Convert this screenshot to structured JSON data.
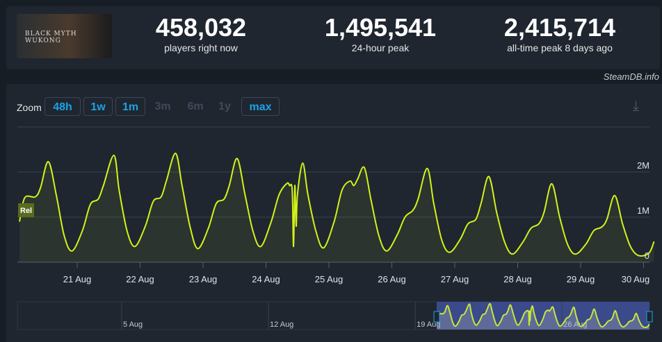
{
  "game": {
    "cover_text": "BLACK MYTH WUKONG"
  },
  "stats": [
    {
      "value": "458,032",
      "label": "players right now"
    },
    {
      "value": "1,495,541",
      "label": "24-hour peak"
    },
    {
      "value": "2,415,714",
      "label": "all-time peak 8 days ago"
    }
  ],
  "credit": "SteamDB.info",
  "zoom": {
    "label": "Zoom",
    "buttons": [
      {
        "label": "48h",
        "enabled": true
      },
      {
        "label": "1w",
        "enabled": true
      },
      {
        "label": "1m",
        "enabled": true
      },
      {
        "label": "3m",
        "enabled": false
      },
      {
        "label": "6m",
        "enabled": false
      },
      {
        "label": "1y",
        "enabled": false
      },
      {
        "label": "max",
        "enabled": true
      }
    ]
  },
  "colors": {
    "line": "#d4f21a",
    "accent": "#1aa3e8",
    "navigator_fill": "#3b4a8a"
  },
  "chart_data": {
    "type": "line",
    "ylim": [
      0,
      2600000
    ],
    "yticks": [
      {
        "v": 0,
        "label": "0"
      },
      {
        "v": 1000000,
        "label": "1M"
      },
      {
        "v": 2000000,
        "label": "2M"
      }
    ],
    "xticks": [
      "2024-08-21",
      "2024-08-22",
      "2024-08-23",
      "2024-08-24",
      "2024-08-25",
      "2024-08-26",
      "2024-08-27",
      "2024-08-28",
      "2024-08-29",
      "2024-08-30"
    ],
    "xtick_labels": [
      "21 Aug",
      "22 Aug",
      "23 Aug",
      "24 Aug",
      "25 Aug",
      "26 Aug",
      "27 Aug",
      "28 Aug",
      "29 Aug",
      "30 Aug"
    ],
    "marker_label": "Rel",
    "navigator_labels": [
      "5 Aug",
      "12 Aug",
      "19 Aug",
      "26 Aug"
    ],
    "grid": true,
    "points": [
      [
        "2024-08-20T02:00",
        900000
      ],
      [
        "2024-08-20T04:00",
        1430000
      ],
      [
        "2024-08-20T08:00",
        1450000
      ],
      [
        "2024-08-20T10:00",
        1650000
      ],
      [
        "2024-08-20T13:00",
        2230000
      ],
      [
        "2024-08-20T16:00",
        1500000
      ],
      [
        "2024-08-20T19:00",
        600000
      ],
      [
        "2024-08-20T22:00",
        250000
      ],
      [
        "2024-08-21T02:00",
        700000
      ],
      [
        "2024-08-21T05:00",
        1280000
      ],
      [
        "2024-08-21T08:00",
        1400000
      ],
      [
        "2024-08-21T10:00",
        1700000
      ],
      [
        "2024-08-21T14:00",
        2370000
      ],
      [
        "2024-08-21T16:00",
        1600000
      ],
      [
        "2024-08-21T19:00",
        700000
      ],
      [
        "2024-08-21T22:00",
        350000
      ],
      [
        "2024-08-22T02:00",
        800000
      ],
      [
        "2024-08-22T05:00",
        1350000
      ],
      [
        "2024-08-22T08:00",
        1450000
      ],
      [
        "2024-08-22T10:00",
        1800000
      ],
      [
        "2024-08-22T13:30",
        2415714
      ],
      [
        "2024-08-22T16:00",
        1700000
      ],
      [
        "2024-08-22T19:00",
        800000
      ],
      [
        "2024-08-22T22:00",
        300000
      ],
      [
        "2024-08-23T02:00",
        750000
      ],
      [
        "2024-08-23T05:00",
        1300000
      ],
      [
        "2024-08-23T08:00",
        1400000
      ],
      [
        "2024-08-23T10:00",
        1700000
      ],
      [
        "2024-08-23T13:00",
        2300000
      ],
      [
        "2024-08-23T16:00",
        1500000
      ],
      [
        "2024-08-23T19:00",
        700000
      ],
      [
        "2024-08-23T22:00",
        350000
      ],
      [
        "2024-08-24T02:00",
        900000
      ],
      [
        "2024-08-24T05:00",
        1500000
      ],
      [
        "2024-08-24T08:00",
        1750000
      ],
      [
        "2024-08-24T09:00",
        1700000
      ],
      [
        "2024-08-24T10:00",
        1600000
      ],
      [
        "2024-08-24T10:30",
        350000
      ],
      [
        "2024-08-24T11:00",
        1700000
      ],
      [
        "2024-08-24T11:30",
        800000
      ],
      [
        "2024-08-24T12:00",
        1500000
      ],
      [
        "2024-08-24T14:00",
        2200000
      ],
      [
        "2024-08-24T16:00",
        1500000
      ],
      [
        "2024-08-24T19:00",
        700000
      ],
      [
        "2024-08-24T22:00",
        320000
      ],
      [
        "2024-08-25T02:00",
        900000
      ],
      [
        "2024-08-25T05:00",
        1600000
      ],
      [
        "2024-08-25T08:00",
        1800000
      ],
      [
        "2024-08-25T09:30",
        1700000
      ],
      [
        "2024-08-25T11:00",
        1850000
      ],
      [
        "2024-08-25T13:30",
        2100000
      ],
      [
        "2024-08-25T16:00",
        1400000
      ],
      [
        "2024-08-25T19:00",
        600000
      ],
      [
        "2024-08-25T22:00",
        250000
      ],
      [
        "2024-08-26T02:00",
        600000
      ],
      [
        "2024-08-26T05:00",
        1000000
      ],
      [
        "2024-08-26T08:00",
        1150000
      ],
      [
        "2024-08-26T10:00",
        1400000
      ],
      [
        "2024-08-26T13:30",
        2080000
      ],
      [
        "2024-08-26T16:00",
        1300000
      ],
      [
        "2024-08-26T19:00",
        500000
      ],
      [
        "2024-08-26T22:00",
        220000
      ],
      [
        "2024-08-27T02:00",
        500000
      ],
      [
        "2024-08-27T05:00",
        850000
      ],
      [
        "2024-08-27T08:00",
        950000
      ],
      [
        "2024-08-27T10:00",
        1300000
      ],
      [
        "2024-08-27T13:00",
        1900000
      ],
      [
        "2024-08-27T16:00",
        1100000
      ],
      [
        "2024-08-27T19:00",
        450000
      ],
      [
        "2024-08-27T22:00",
        180000
      ],
      [
        "2024-08-28T02:00",
        450000
      ],
      [
        "2024-08-28T05:00",
        750000
      ],
      [
        "2024-08-28T08:00",
        850000
      ],
      [
        "2024-08-28T10:00",
        1100000
      ],
      [
        "2024-08-28T13:00",
        1740000
      ],
      [
        "2024-08-28T16:00",
        1000000
      ],
      [
        "2024-08-28T19:00",
        400000
      ],
      [
        "2024-08-28T22:00",
        180000
      ],
      [
        "2024-08-29T02:00",
        400000
      ],
      [
        "2024-08-29T05:00",
        700000
      ],
      [
        "2024-08-29T08:00",
        780000
      ],
      [
        "2024-08-29T10:00",
        950000
      ],
      [
        "2024-08-29T13:00",
        1480000
      ],
      [
        "2024-08-29T16:00",
        850000
      ],
      [
        "2024-08-29T19:00",
        350000
      ],
      [
        "2024-08-29T22:00",
        150000
      ],
      [
        "2024-08-30T02:00",
        200000
      ],
      [
        "2024-08-30T04:00",
        458032
      ]
    ]
  }
}
